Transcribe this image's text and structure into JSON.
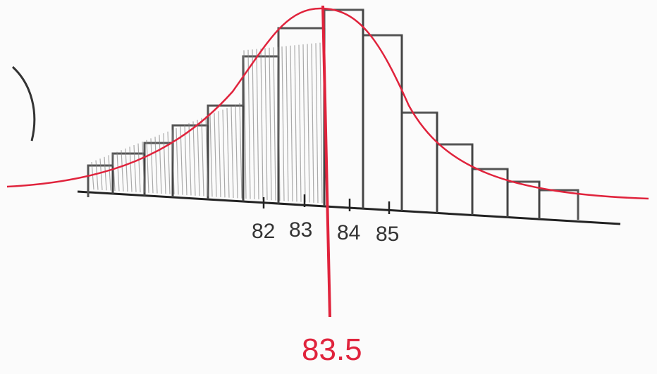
{
  "axis_labels": [
    "82",
    "83",
    "84",
    "85"
  ],
  "marker_label": "83.5"
}
